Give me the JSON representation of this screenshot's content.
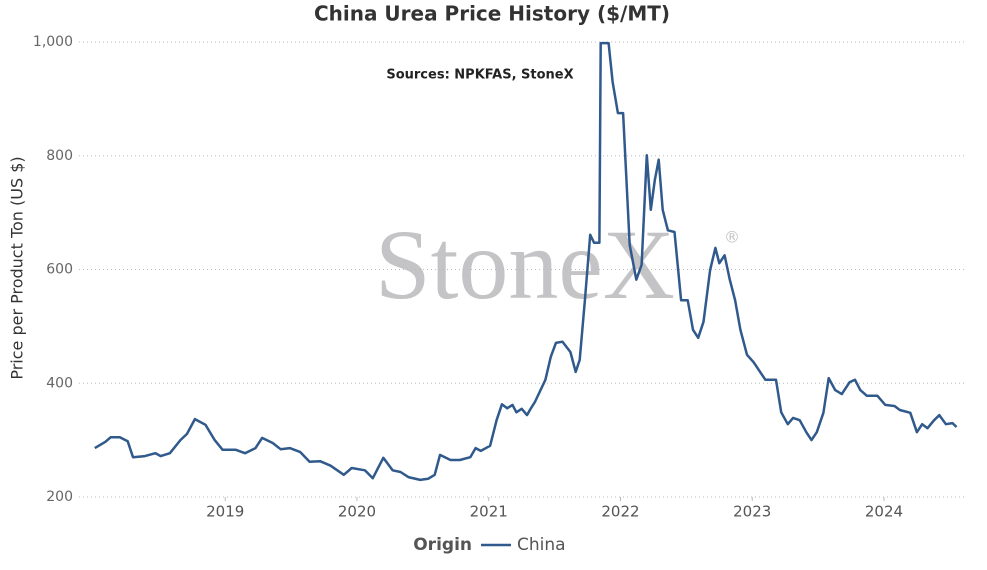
{
  "chart_data": {
    "type": "line",
    "title": "China Urea Price History ($/MT)",
    "annotation": "Sources: NPKFAS, StoneX",
    "watermark": "StoneX",
    "watermark_mark": "®",
    "y_label": "Price per Product Ton (US $)",
    "legend_title": "Origin",
    "grid": true,
    "xlim": [
      2017.89,
      2024.63
    ],
    "xticks": [
      2019,
      2020,
      2021,
      2022,
      2023,
      2024
    ],
    "ylim": [
      200,
      1000
    ],
    "yticks": [
      200,
      400,
      600,
      800,
      {
        "value": 1000,
        "label": "1,000"
      }
    ],
    "x": [
      2018.01,
      2018.09,
      2018.13,
      2018.2,
      2018.26,
      2018.3,
      2018.39,
      2018.47,
      2018.51,
      2018.58,
      2018.66,
      2018.71,
      2018.77,
      2018.85,
      2018.92,
      2018.98,
      2019.08,
      2019.15,
      2019.23,
      2019.28,
      2019.36,
      2019.42,
      2019.49,
      2019.57,
      2019.64,
      2019.72,
      2019.8,
      2019.9,
      2019.96,
      2020.06,
      2020.12,
      2020.2,
      2020.27,
      2020.33,
      2020.39,
      2020.48,
      2020.54,
      2020.59,
      2020.63,
      2020.71,
      2020.78,
      2020.86,
      2020.9,
      2020.94,
      2021.01,
      2021.06,
      2021.1,
      2021.14,
      2021.18,
      2021.21,
      2021.25,
      2021.29,
      2021.32,
      2021.35,
      2021.43,
      2021.47,
      2021.51,
      2021.56,
      2021.62,
      2021.66,
      2021.69,
      2021.73,
      2021.77,
      2021.8,
      2021.84,
      2021.85,
      2021.91,
      2021.94,
      2021.98,
      2022.02,
      2022.07,
      2022.12,
      2022.16,
      2022.2,
      2022.23,
      2022.26,
      2022.29,
      2022.32,
      2022.36,
      2022.41,
      2022.46,
      2022.51,
      2022.55,
      2022.59,
      2022.63,
      2022.68,
      2022.72,
      2022.75,
      2022.79,
      2022.83,
      2022.87,
      2022.91,
      2022.96,
      2023.01,
      2023.1,
      2023.18,
      2023.22,
      2023.27,
      2023.31,
      2023.36,
      2023.41,
      2023.45,
      2023.49,
      2023.54,
      2023.58,
      2023.63,
      2023.68,
      2023.74,
      2023.78,
      2023.82,
      2023.87,
      2023.95,
      2024.01,
      2024.08,
      2024.12,
      2024.2,
      2024.25,
      2024.29,
      2024.33,
      2024.38,
      2024.42,
      2024.47,
      2024.52,
      2024.55
    ],
    "series": [
      {
        "name": "China",
        "color": "#30598c",
        "values": [
          286,
          297,
          305,
          305,
          298,
          270,
          272,
          277,
          272,
          277,
          300,
          311,
          337,
          327,
          300,
          283,
          283,
          277,
          286,
          304,
          295,
          284,
          286,
          279,
          262,
          263,
          255,
          239,
          251,
          247,
          233,
          269,
          247,
          244,
          235,
          230,
          232,
          239,
          274,
          265,
          265,
          270,
          286,
          281,
          290,
          335,
          363,
          356,
          362,
          349,
          355,
          344,
          356,
          367,
          406,
          446,
          471,
          473,
          455,
          420,
          441,
          546,
          661,
          647,
          647,
          998,
          998,
          930,
          875,
          875,
          643,
          582,
          608,
          801,
          705,
          757,
          793,
          705,
          669,
          666,
          546,
          546,
          494,
          480,
          508,
          599,
          638,
          611,
          625,
          582,
          546,
          494,
          450,
          437,
          406,
          406,
          349,
          328,
          339,
          335,
          314,
          300,
          314,
          348,
          409,
          388,
          381,
          402,
          406,
          388,
          378,
          378,
          362,
          360,
          353,
          348,
          314,
          328,
          321,
          335,
          344,
          328,
          330,
          323
        ]
      }
    ]
  }
}
